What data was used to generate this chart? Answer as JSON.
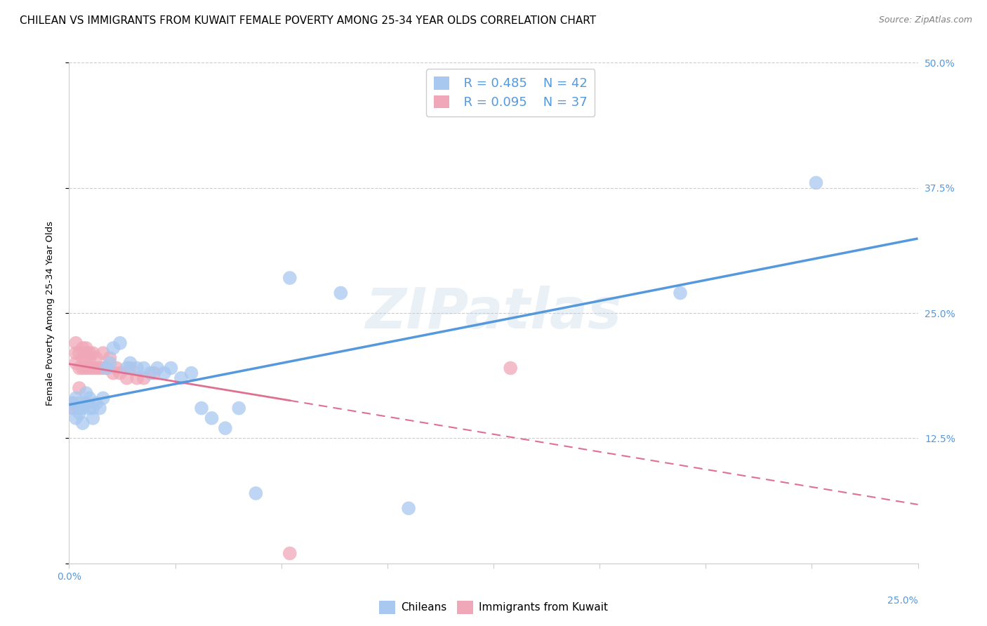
{
  "title": "CHILEAN VS IMMIGRANTS FROM KUWAIT FEMALE POVERTY AMONG 25-34 YEAR OLDS CORRELATION CHART",
  "source": "Source: ZipAtlas.com",
  "ylabel": "Female Poverty Among 25-34 Year Olds",
  "xlim": [
    0.0,
    0.25
  ],
  "ylim": [
    0.0,
    0.5
  ],
  "xticks": [
    0.0,
    0.03125,
    0.0625,
    0.09375,
    0.125,
    0.15625,
    0.1875,
    0.21875,
    0.25
  ],
  "ytick_positions": [
    0.0,
    0.125,
    0.25,
    0.375,
    0.5
  ],
  "ytick_labels_right": [
    "",
    "12.5%",
    "25.0%",
    "37.5%",
    "50.0%"
  ],
  "background_color": "#ffffff",
  "grid_color": "#cccccc",
  "chilean_color": "#a8c8f0",
  "kuwait_color": "#f0a8b8",
  "chilean_line_color": "#5599dd",
  "kuwait_line_color": "#e07090",
  "legend_R1": "R = 0.485",
  "legend_N1": "N = 42",
  "legend_R2": "R = 0.095",
  "legend_N2": "N = 37",
  "watermark": "ZIPatlas",
  "chilean_x": [
    0.001,
    0.001,
    0.002,
    0.002,
    0.003,
    0.003,
    0.003,
    0.004,
    0.004,
    0.005,
    0.005,
    0.006,
    0.006,
    0.007,
    0.007,
    0.008,
    0.009,
    0.01,
    0.011,
    0.012,
    0.013,
    0.015,
    0.017,
    0.018,
    0.02,
    0.022,
    0.024,
    0.026,
    0.028,
    0.03,
    0.033,
    0.036,
    0.039,
    0.042,
    0.046,
    0.05,
    0.055,
    0.065,
    0.08,
    0.1,
    0.18,
    0.22
  ],
  "chilean_y": [
    0.155,
    0.16,
    0.145,
    0.165,
    0.155,
    0.15,
    0.16,
    0.155,
    0.14,
    0.16,
    0.17,
    0.155,
    0.165,
    0.155,
    0.145,
    0.16,
    0.155,
    0.165,
    0.195,
    0.2,
    0.215,
    0.22,
    0.195,
    0.2,
    0.195,
    0.195,
    0.19,
    0.195,
    0.19,
    0.195,
    0.185,
    0.19,
    0.155,
    0.145,
    0.135,
    0.155,
    0.07,
    0.285,
    0.27,
    0.055,
    0.27,
    0.38
  ],
  "kuwait_x": [
    0.001,
    0.001,
    0.002,
    0.002,
    0.002,
    0.003,
    0.003,
    0.003,
    0.004,
    0.004,
    0.004,
    0.005,
    0.005,
    0.005,
    0.005,
    0.006,
    0.006,
    0.006,
    0.007,
    0.007,
    0.008,
    0.008,
    0.009,
    0.01,
    0.01,
    0.011,
    0.012,
    0.013,
    0.014,
    0.015,
    0.017,
    0.018,
    0.02,
    0.022,
    0.025,
    0.065,
    0.13
  ],
  "kuwait_y": [
    0.155,
    0.16,
    0.2,
    0.21,
    0.22,
    0.175,
    0.195,
    0.21,
    0.195,
    0.205,
    0.215,
    0.195,
    0.2,
    0.21,
    0.215,
    0.195,
    0.205,
    0.21,
    0.195,
    0.21,
    0.195,
    0.205,
    0.195,
    0.195,
    0.21,
    0.195,
    0.205,
    0.19,
    0.195,
    0.19,
    0.185,
    0.195,
    0.185,
    0.185,
    0.19,
    0.01,
    0.195
  ],
  "title_fontsize": 11,
  "source_fontsize": 9,
  "axis_label_fontsize": 9.5,
  "tick_fontsize": 10,
  "legend_fontsize": 13
}
